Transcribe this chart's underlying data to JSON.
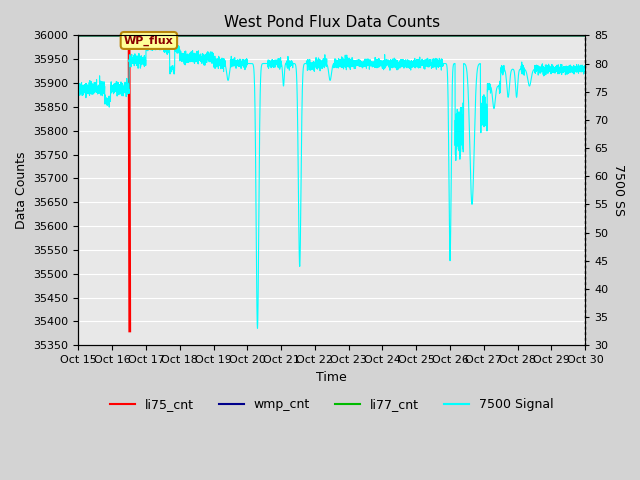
{
  "title": "West Pond Flux Data Counts",
  "xlabel": "Time",
  "ylabel_left": "Data Counts",
  "ylabel_right": "7500 SS",
  "ylim_left": [
    35350,
    36000
  ],
  "ylim_right": [
    30,
    85
  ],
  "xtick_labels": [
    "Oct 15",
    "Oct 16",
    "Oct 17",
    "Oct 18",
    "Oct 19",
    "Oct 20",
    "Oct 21",
    "Oct 22",
    "Oct 23",
    "Oct 24",
    "Oct 25",
    "Oct 26",
    "Oct 27",
    "Oct 28",
    "Oct 29",
    "Oct 30"
  ],
  "background_color": "#d3d3d3",
  "plot_bg_color": "#e8e8e8",
  "grid_color": "#ffffff",
  "annotation_text": "WP_flux",
  "li75_color": "#ff0000",
  "wmp_color": "#00008b",
  "li77_color": "#00bb00",
  "signal7500_color": "#00ffff",
  "title_fontsize": 11,
  "axis_label_fontsize": 9,
  "tick_fontsize": 8,
  "legend_fontsize": 9
}
